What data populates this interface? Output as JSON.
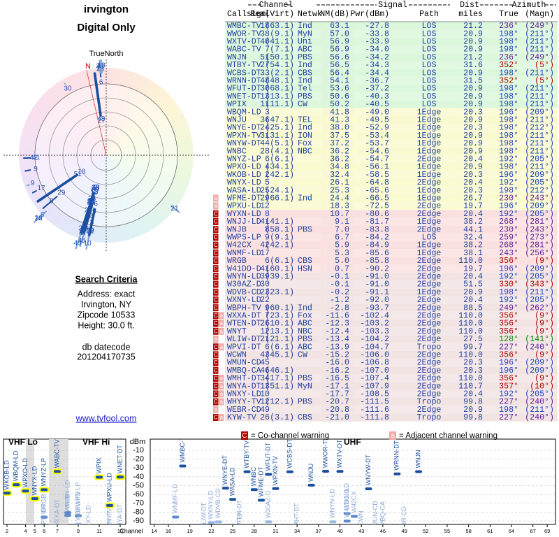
{
  "header": {
    "location": "irvington",
    "mode": "Digital Only",
    "north_label": "TrueNorth",
    "magnetic_label": "N"
  },
  "criteria": {
    "title": "Search Criteria",
    "lines": [
      "Address: exact",
      "Irvington, NY",
      "Zipcode 10533",
      "Height: 30.0 ft."
    ],
    "datecode_label": "db datecode",
    "datecode": "201204170735",
    "link": "www.tvfool.com"
  },
  "table": {
    "groups": [
      "Channel",
      "Signal",
      "Dist",
      "Azimuth"
    ],
    "columns": [
      "Callsign",
      "Real",
      "(Virt)",
      "Netwk",
      "NM(dB)",
      "Pwr(dBm)",
      "Path",
      "miles",
      "True",
      "(Magn)"
    ],
    "rows": [
      [
        [],
        "WMBC-TV",
        "18",
        "(63.1)",
        "Ind",
        "63.1",
        "-27.8",
        "LOS",
        "21.2",
        "236°",
        "(249°)"
      ],
      [
        [],
        "WWOR-TV",
        "38",
        "(9.1)",
        "MyN",
        "57.0",
        "-33.8",
        "LOS",
        "20.9",
        "198°",
        "(211°)"
      ],
      [
        [],
        "WXTV-DT",
        "40",
        "(41.1)",
        "Uni",
        "56.9",
        "-33.9",
        "LOS",
        "20.9",
        "198°",
        "(211°)"
      ],
      [
        [],
        "WABC-TV",
        "7",
        "(7.1)",
        "ABC",
        "56.9",
        "-34.0",
        "LOS",
        "20.9",
        "198°",
        "(211°)"
      ],
      [
        [],
        "WNJN",
        "51",
        "(50.1)",
        "PBS",
        "56.6",
        "-34.2",
        "LOS",
        "21.2",
        "236°",
        "(249°)"
      ],
      [
        [],
        "WTBY-TV",
        "27",
        "(54.1)",
        "Ind",
        "56.5",
        "-34.3",
        "LOS",
        "31.6",
        "352°",
        "(5°)"
      ],
      [
        [],
        "WCBS-DT",
        "33",
        "(2.1)",
        "CBS",
        "56.4",
        "-34.4",
        "LOS",
        "20.9",
        "198°",
        "(211°)"
      ],
      [
        [],
        "WRNN-DT",
        "48",
        "(48.1)",
        "Ind",
        "54.1",
        "-36.7",
        "LOS",
        "31.5",
        "352°",
        "(5°)"
      ],
      [
        [],
        "WFUT-DT",
        "30",
        "(68.1)",
        "Tel",
        "53.6",
        "-37.2",
        "LOS",
        "20.9",
        "198°",
        "(211°)"
      ],
      [
        [],
        "WNET-DT",
        "13",
        "(13.1)",
        "PBS",
        "50.6",
        "-40.3",
        "LOS",
        "20.9",
        "198°",
        "(211°)"
      ],
      [
        [],
        "WPIX",
        "11",
        "(11.1)",
        "CW",
        "50.2",
        "-40.5",
        "LOS",
        "20.9",
        "198°",
        "(211°)"
      ],
      [
        [],
        "WBQM-LD",
        "3",
        null,
        null,
        "41.8",
        "-49.0",
        "1Edge",
        "20.3",
        "196°",
        "(209°)"
      ],
      [
        [],
        "WNJU",
        "36",
        "(47.1)",
        "TEL",
        "41.3",
        "-49.5",
        "1Edge",
        "20.9",
        "198°",
        "(211°)"
      ],
      [
        [],
        "WNYE-DT",
        "24",
        "(25.1)",
        "Ind",
        "38.0",
        "-52.9",
        "1Edge",
        "20.3",
        "198°",
        "(212°)"
      ],
      [
        [],
        "WPXN-TV",
        "31",
        "(31.1)",
        "ION",
        "37.5",
        "-53.4",
        "1Edge",
        "20.9",
        "198°",
        "(211°)"
      ],
      [
        [],
        "WNYW-DT",
        "44",
        "(5.1)",
        "Fox",
        "37.2",
        "-53.7",
        "1Edge",
        "20.9",
        "198°",
        "(211°)"
      ],
      [
        [],
        "WNBC",
        "28",
        "(4.1)",
        "NBC",
        "36.2",
        "-54.6",
        "1Edge",
        "20.9",
        "198°",
        "(211°)"
      ],
      [
        [],
        "WNYZ-LP",
        "6",
        "(6.1)",
        null,
        "36.2",
        "-54.7",
        "2Edge",
        "20.4",
        "192°",
        "(205°)"
      ],
      [
        [],
        "WPXO-LD",
        "4",
        "(34.1)",
        null,
        "34.8",
        "-56.1",
        "1Edge",
        "20.9",
        "198°",
        "(211°)"
      ],
      [
        [],
        "WKOB-LD",
        "2",
        "(42.1)",
        null,
        "32.4",
        "-58.5",
        "1Edge",
        "20.3",
        "196°",
        "(209°)"
      ],
      [
        [],
        "WNYX-LD",
        "5",
        null,
        null,
        "26.1",
        "-64.8",
        "2Edge",
        "20.4",
        "192°",
        "(205°)"
      ],
      [
        [],
        "WASA-LD",
        "25",
        "(24.1)",
        null,
        "25.3",
        "-65.6",
        "1Edge",
        "20.3",
        "198°",
        "(212°)"
      ],
      [
        [
          "a"
        ],
        "WFME-DT",
        "29",
        "(66.1)",
        "Ind",
        "24.4",
        "-66.5",
        "1Edge",
        "26.7",
        "230°",
        "(243°)"
      ],
      [
        [
          "a"
        ],
        "WPXU-LD",
        "12",
        null,
        null,
        "18.3",
        "-72.5",
        "2Edge",
        "19.7",
        "196°",
        "(209°)"
      ],
      [
        [
          "C"
        ],
        "WYXN-LD",
        "8",
        null,
        null,
        "10.7",
        "-80.6",
        "2Edge",
        "20.4",
        "192°",
        "(205°)"
      ],
      [
        [
          "C"
        ],
        "WNJJ-LD",
        "41",
        "(41.1)",
        null,
        "9.1",
        "-81.7",
        "1Edge",
        "38.2",
        "268°",
        "(281°)"
      ],
      [
        [
          "C"
        ],
        "WNJB",
        "8",
        "(58.1)",
        "PBS",
        "7.0",
        "-83.8",
        "2Edge",
        "44.1",
        "230°",
        "(243°)"
      ],
      [
        [
          "C"
        ],
        "WWPS-LP",
        "9",
        "(9.1)",
        null,
        "6.7",
        "-84.2",
        "LOS",
        "32.4",
        "259°",
        "(273°)"
      ],
      [
        [
          "C"
        ],
        "W42CX",
        "42",
        "(42.1)",
        null,
        "5.9",
        "-84.9",
        "1Edge",
        "38.2",
        "268°",
        "(281°)"
      ],
      [
        [
          "C"
        ],
        "WNMF-LD",
        "17",
        null,
        null,
        "5.3",
        "-85.6",
        "1Edge",
        "38.1",
        "243°",
        "(256°)"
      ],
      [
        [
          "C"
        ],
        "WRGB",
        "6",
        "(6.1)",
        "CBS",
        "5.0",
        "-85.8",
        "2Edge",
        "110.0",
        "356°",
        "(9°)"
      ],
      [
        [
          "C"
        ],
        "W41DO-D",
        "41",
        "(60.1)",
        "HSN",
        "0.7",
        "-90.2",
        "2Edge",
        "19.7",
        "196°",
        "(209°)"
      ],
      [
        [
          "C"
        ],
        "WNYN-LD",
        "39",
        "(39.1)",
        null,
        "-0.1",
        "-91.0",
        "2Edge",
        "20.4",
        "192°",
        "(205°)"
      ],
      [
        [
          "C"
        ],
        "W30AZ-D",
        "30",
        null,
        null,
        "-0.1",
        "-91.0",
        "2Edge",
        "51.5",
        "330°",
        "(343°)"
      ],
      [
        [
          "C"
        ],
        "WDVB-CD",
        "23",
        "(23.1)",
        null,
        "-0.2",
        "-91.1",
        "1Edge",
        "20.9",
        "198°",
        "(211°)"
      ],
      [
        [
          "C"
        ],
        "WXNY-LD",
        "22",
        null,
        null,
        "-1.2",
        "-92.0",
        "2Edge",
        "20.4",
        "192°",
        "(205°)"
      ],
      [
        [
          "C"
        ],
        "WBPH-TV",
        "9",
        "(60.1)",
        "Ind",
        "-2.8",
        "-93.7",
        "2Edge",
        "88.5",
        "249°",
        "(262°)"
      ],
      [
        [
          "C",
          "a"
        ],
        "WXXA-DT",
        "7",
        "(23.1)",
        "Fox",
        "-11.6",
        "-102.4",
        "2Edge",
        "110.0",
        "356°",
        "(9°)"
      ],
      [
        [
          "C",
          "a"
        ],
        "WTEN-DT",
        "26",
        "(10.1)",
        "ABC",
        "-12.3",
        "-103.2",
        "2Edge",
        "110.0",
        "356°",
        "(9°)"
      ],
      [
        [
          "C",
          "a"
        ],
        "WNYT",
        "12",
        "(13.1)",
        "NBC",
        "-12.4",
        "-103.3",
        "2Edge",
        "110.0",
        "356°",
        "(9°)"
      ],
      [
        [
          "a"
        ],
        "WLIW-DT",
        "21",
        "(21.1)",
        "PBS",
        "-13.4",
        "-104.2",
        "2Edge",
        "27.5",
        "128°",
        "(141°)"
      ],
      [
        [
          "C",
          "a"
        ],
        "WPVI-DT",
        "6",
        "(6.1)",
        "ABC",
        "-13.9",
        "-104.7",
        "Tropo",
        "99.7",
        "227°",
        "(240°)"
      ],
      [
        [
          "C"
        ],
        "WCWN",
        "43",
        "(45.1)",
        "CW",
        "-15.2",
        "-106.0",
        "2Edge",
        "110.0",
        "356°",
        "(9°)"
      ],
      [
        [
          "C"
        ],
        "WMUN-CD",
        "45",
        null,
        null,
        "-16.0",
        "-106.8",
        "2Edge",
        "20.3",
        "196°",
        "(209°)"
      ],
      [
        [
          "C"
        ],
        "WMBQ-CA",
        "46",
        "(46.1)",
        null,
        "-16.2",
        "-107.0",
        "2Edge",
        "20.3",
        "196°",
        "(209°)"
      ],
      [
        [
          "C",
          "a"
        ],
        "WMHT-DT",
        "34",
        "(17.1)",
        "PBS",
        "-16.5",
        "-107.4",
        "2Edge",
        "110.0",
        "356°",
        "(9°)"
      ],
      [
        [
          "C",
          "a"
        ],
        "WNYA-DT",
        "13",
        "(51.1)",
        "MyN",
        "-17.1",
        "-107.9",
        "2Edge",
        "110.7",
        "357°",
        "(10°)"
      ],
      [
        [
          "C",
          "a"
        ],
        "WNXY-LD",
        "10",
        null,
        null,
        "-17.7",
        "-108.5",
        "2Edge",
        "20.4",
        "192°",
        "(205°)"
      ],
      [
        [
          "C",
          "a"
        ],
        "WHYY-TV",
        "12",
        "(12.1)",
        "PBS",
        "-20.7",
        "-111.5",
        "Tropo",
        "99.8",
        "227°",
        "(240°)"
      ],
      [
        [
          "a"
        ],
        "WEBR-CD",
        "49",
        null,
        null,
        "-20.8",
        "-111.6",
        "2Edge",
        "20.9",
        "198°",
        "(211°)"
      ],
      [
        [
          "C",
          "a"
        ],
        "KYW-TV",
        "26",
        "(3.1)",
        "CBS",
        "-21.0",
        "-111.8",
        "Tropo",
        "99.8",
        "227°",
        "(240°)"
      ]
    ]
  },
  "spectrum": {
    "vhf_lo_label": "VHF Lo",
    "vhf_hi_label": "VHF Hi",
    "uhf_label": "UHF",
    "unit": "dBm",
    "axis_label": "Channel",
    "yticks": [
      -10,
      -20,
      -30,
      -40,
      -50,
      -60,
      -70,
      -80,
      -90
    ],
    "vhf_ticks": [
      2,
      4,
      5,
      6,
      7,
      9,
      11,
      13
    ],
    "uhf_ticks": [
      14,
      16,
      19,
      22,
      25,
      28,
      31,
      34,
      37,
      40,
      43,
      46,
      49,
      52,
      55,
      58,
      61,
      64,
      67,
      69
    ]
  },
  "legend": {
    "co_mark": "C",
    "co": "= Co-channel warning",
    "adj_mark": "a",
    "adj": "= Adjacent channel warning"
  }
}
